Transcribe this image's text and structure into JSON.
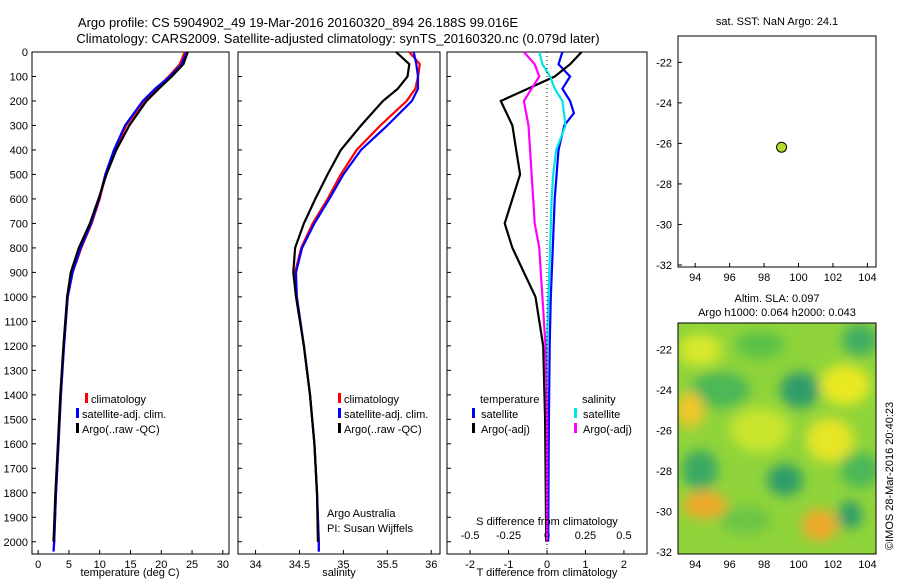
{
  "header": {
    "line1": "Argo profile: CS 5904902_49 19-Mar-2016 20160320_894 26.188S 99.016E",
    "line2": "Climatology: CARS2009. Satellite-adjusted climatology: synTS_20160320.nc (0.079d later)"
  },
  "colors": {
    "climatology": "#ff0000",
    "satellite": "#0000ff",
    "argo": "#000000",
    "sat_s": "#00e5e5",
    "argo_s": "#ff00ff",
    "marker": "#b5dc2b"
  },
  "depth_ticks": [
    "0",
    "100",
    "200",
    "300",
    "400",
    "500",
    "600",
    "700",
    "800",
    "900",
    "1000",
    "1100",
    "1200",
    "1300",
    "1400",
    "1500",
    "1600",
    "1700",
    "1800",
    "1900",
    "2000"
  ],
  "temp_panel": {
    "xlabel": "temperature (deg C)",
    "xticks": [
      "0",
      "5",
      "10",
      "15",
      "20",
      "25",
      "30"
    ],
    "legend": [
      "climatology",
      "satellite-adj. clim.",
      "Argo(..raw -QC)"
    ]
  },
  "sal_panel": {
    "xlabel": "salinity",
    "xticks": [
      "34",
      "34.5",
      "35",
      "35.5",
      "36"
    ],
    "legend": [
      "climatology",
      "satellite-adj. clim.",
      "Argo(..raw -QC)"
    ],
    "note1": "Argo Australia",
    "note2": "PI: Susan Wijffels"
  },
  "diff_panel": {
    "xlabel": "T difference from climatology",
    "s_label": "S difference from climatology",
    "xticks": [
      "-2",
      "-1",
      "0",
      "1",
      "2"
    ],
    "sticks": [
      "-0.5",
      "-0.25",
      "0",
      "0.25",
      "0.5"
    ],
    "leg_t_title": "temperature",
    "leg_s_title": "salinity",
    "leg_t": [
      "satellite",
      "Argo(-adj)"
    ],
    "leg_s": [
      "satellite",
      "Argo(-adj)"
    ]
  },
  "map1": {
    "title": "sat. SST: NaN Argo: 24.1",
    "yticks": [
      "-22",
      "-24",
      "-26",
      "-28",
      "-30",
      "-32"
    ],
    "xticks": [
      "94",
      "96",
      "98",
      "100",
      "102",
      "104"
    ],
    "point": {
      "lon": 99.016,
      "lat": -26.188
    }
  },
  "map2": {
    "title1": "Altim. SLA: 0.097",
    "title2": "Argo h1000: 0.064 h2000: 0.043",
    "yticks": [
      "-22",
      "-24",
      "-26",
      "-28",
      "-30",
      "-32"
    ],
    "xticks": [
      "94",
      "96",
      "98",
      "100",
      "102",
      "104"
    ]
  },
  "credit": "©IMOS 28-Mar-2016 20:40:23",
  "chart_data": [
    {
      "type": "line",
      "xlabel": "temperature (deg C)",
      "ylabel": "",
      "xlim": [
        -1,
        31
      ],
      "ylim": [
        2050,
        0
      ],
      "series": [
        {
          "name": "climatology",
          "depth": [
            0,
            50,
            100,
            150,
            200,
            300,
            400,
            500,
            600,
            700,
            800,
            900,
            1000,
            1200,
            1400,
            1600,
            1800,
            2000,
            2040
          ],
          "values": [
            23.8,
            23.0,
            21.2,
            19.2,
            17.2,
            14.3,
            12.5,
            11.0,
            10.0,
            8.7,
            7.0,
            5.6,
            4.8,
            4.2,
            3.7,
            3.3,
            2.9,
            2.6,
            2.5
          ]
        },
        {
          "name": "satellite-adj. clim.",
          "depth": [
            0,
            50,
            100,
            150,
            200,
            300,
            400,
            500,
            600,
            700,
            800,
            900,
            1000,
            1200,
            1400,
            1600,
            1800,
            2000,
            2040
          ],
          "values": [
            24.1,
            23.3,
            21.4,
            19.0,
            17.0,
            14.1,
            12.3,
            10.9,
            9.9,
            8.6,
            6.9,
            5.6,
            4.8,
            4.2,
            3.7,
            3.3,
            2.9,
            2.6,
            2.5
          ]
        },
        {
          "name": "Argo(..raw -QC)",
          "depth": [
            0,
            50,
            100,
            150,
            200,
            300,
            400,
            500,
            600,
            700,
            800,
            900,
            1000,
            1200,
            1400,
            1600,
            1800,
            2000
          ],
          "values": [
            24.3,
            23.6,
            21.7,
            19.6,
            17.6,
            14.8,
            12.7,
            11.1,
            9.8,
            8.4,
            6.6,
            5.3,
            4.7,
            4.1,
            3.6,
            3.2,
            2.8,
            2.5
          ]
        }
      ]
    },
    {
      "type": "line",
      "xlabel": "salinity",
      "ylabel": "",
      "xlim": [
        33.8,
        36.1
      ],
      "ylim": [
        2050,
        0
      ],
      "series": [
        {
          "name": "climatology",
          "depth": [
            0,
            50,
            100,
            150,
            200,
            300,
            400,
            500,
            600,
            700,
            800,
            900,
            1000,
            1200,
            1400,
            1600,
            1800,
            2000,
            2040
          ],
          "values": [
            35.75,
            35.87,
            35.85,
            35.82,
            35.72,
            35.42,
            35.15,
            34.97,
            34.82,
            34.65,
            34.52,
            34.45,
            34.47,
            34.55,
            34.62,
            34.67,
            34.7,
            34.72,
            34.72
          ]
        },
        {
          "name": "satellite-adj. clim.",
          "depth": [
            0,
            50,
            100,
            150,
            200,
            300,
            400,
            500,
            600,
            700,
            800,
            900,
            1000,
            1200,
            1400,
            1600,
            1800,
            2000,
            2040
          ],
          "values": [
            35.8,
            35.83,
            35.85,
            35.85,
            35.78,
            35.5,
            35.2,
            35.0,
            34.84,
            34.67,
            34.53,
            34.46,
            34.47,
            34.55,
            34.62,
            34.67,
            34.7,
            34.72,
            34.72
          ]
        },
        {
          "name": "Argo(..raw -QC)",
          "depth": [
            0,
            50,
            100,
            150,
            200,
            300,
            400,
            500,
            600,
            700,
            800,
            900,
            1000,
            1200,
            1400,
            1600,
            1800,
            2000
          ],
          "values": [
            35.6,
            35.75,
            35.73,
            35.62,
            35.45,
            35.2,
            34.97,
            34.82,
            34.68,
            34.55,
            34.45,
            34.43,
            34.46,
            34.55,
            34.62,
            34.67,
            34.7,
            34.71
          ]
        }
      ]
    },
    {
      "type": "line",
      "xlabel": "T difference from climatology",
      "ylabel": "",
      "xlim": [
        -2.6,
        2.6
      ],
      "ylim": [
        2050,
        0
      ],
      "series": [
        {
          "name": "satellite",
          "depth": [
            0,
            50,
            100,
            150,
            200,
            250,
            300,
            400,
            500,
            600,
            800,
            1000,
            1200,
            1500,
            2000
          ],
          "values": [
            0.4,
            0.3,
            0.6,
            0.4,
            0.6,
            0.7,
            0.45,
            0.3,
            0.25,
            0.2,
            0.15,
            0.1,
            0.07,
            0.05,
            0.03
          ]
        },
        {
          "name": "Argo(-adj)",
          "depth": [
            0,
            50,
            100,
            150,
            200,
            300,
            400,
            500,
            600,
            700,
            800,
            900,
            1000,
            1200,
            1500,
            2000
          ],
          "values": [
            0.9,
            0.6,
            0.2,
            -0.5,
            -1.2,
            -0.9,
            -0.8,
            -0.7,
            -0.9,
            -1.1,
            -0.9,
            -0.6,
            -0.3,
            -0.1,
            -0.05,
            -0.02
          ]
        }
      ]
    },
    {
      "type": "line",
      "xlabel": "S difference from climatology",
      "ylabel": "",
      "xlim": [
        -0.65,
        0.65
      ],
      "ylim": [
        2050,
        0
      ],
      "series": [
        {
          "name": "satellite",
          "depth": [
            0,
            50,
            100,
            150,
            200,
            300,
            400,
            500,
            600,
            800,
            1000,
            1200,
            1500,
            2000
          ],
          "values": [
            -0.05,
            -0.03,
            0.02,
            0.05,
            0.1,
            0.12,
            0.06,
            0.04,
            0.03,
            0.02,
            0.01,
            0.0,
            0.0,
            0.0
          ]
        },
        {
          "name": "Argo(-adj)",
          "depth": [
            0,
            50,
            100,
            150,
            200,
            300,
            400,
            500,
            600,
            700,
            800,
            900,
            1000,
            1200,
            1500,
            2000
          ],
          "values": [
            -0.15,
            -0.08,
            -0.05,
            -0.1,
            -0.15,
            -0.12,
            -0.11,
            -0.1,
            -0.09,
            -0.08,
            -0.05,
            -0.04,
            -0.03,
            -0.01,
            0.0,
            0.0
          ]
        }
      ]
    }
  ]
}
